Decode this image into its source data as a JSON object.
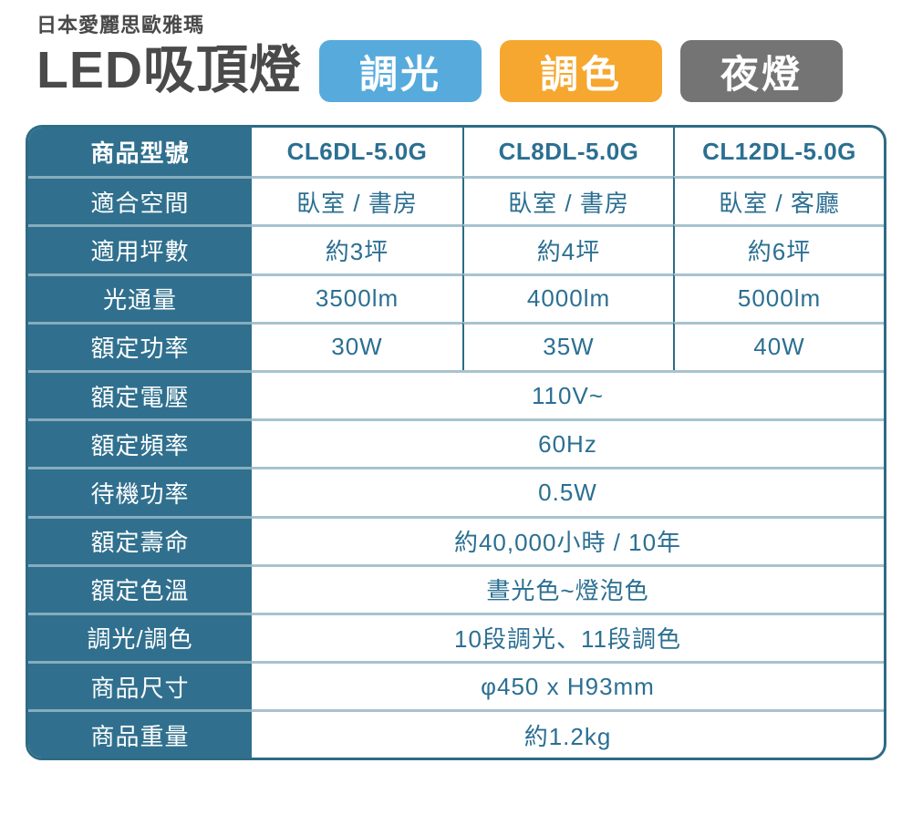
{
  "page": {
    "brand": "日本愛麗思歐雅瑪",
    "title": "LED吸頂燈",
    "badges": [
      {
        "label": "調光",
        "color": "#57abdc"
      },
      {
        "label": "調色",
        "color": "#f6a72f"
      },
      {
        "label": "夜燈",
        "color": "#747474"
      }
    ]
  },
  "colors": {
    "table_header_bg": "#30708e",
    "table_border": "#2e6b85",
    "row_divider": "#a7c3cf",
    "value_text": "#2b6f92",
    "title_text": "#4a4a4a"
  },
  "table": {
    "header": {
      "label": "商品型號",
      "models": [
        "CL6DL-5.0G",
        "CL8DL-5.0G",
        "CL12DL-5.0G"
      ]
    },
    "rows": [
      {
        "label": "適合空間",
        "values": [
          "臥室 / 書房",
          "臥室 / 書房",
          "臥室 / 客廳"
        ]
      },
      {
        "label": "適用坪數",
        "values": [
          "約3坪",
          "約4坪",
          "約6坪"
        ]
      },
      {
        "label": "光通量",
        "values": [
          "3500lm",
          "4000lm",
          "5000lm"
        ]
      },
      {
        "label": "額定功率",
        "values": [
          "30W",
          "35W",
          "40W"
        ]
      }
    ],
    "span_rows": [
      {
        "label": "額定電壓",
        "value": "110V~"
      },
      {
        "label": "額定頻率",
        "value": "60Hz"
      },
      {
        "label": "待機功率",
        "value": "0.5W"
      },
      {
        "label": "額定壽命",
        "value": "約40,000小時 / 10年"
      },
      {
        "label": "額定色溫",
        "value": "晝光色~燈泡色"
      },
      {
        "label": "調光/調色",
        "value": "10段調光、11段調色"
      },
      {
        "label": "商品尺寸",
        "value": "φ450 x H93mm"
      },
      {
        "label": "商品重量",
        "value": "約1.2kg"
      }
    ]
  }
}
